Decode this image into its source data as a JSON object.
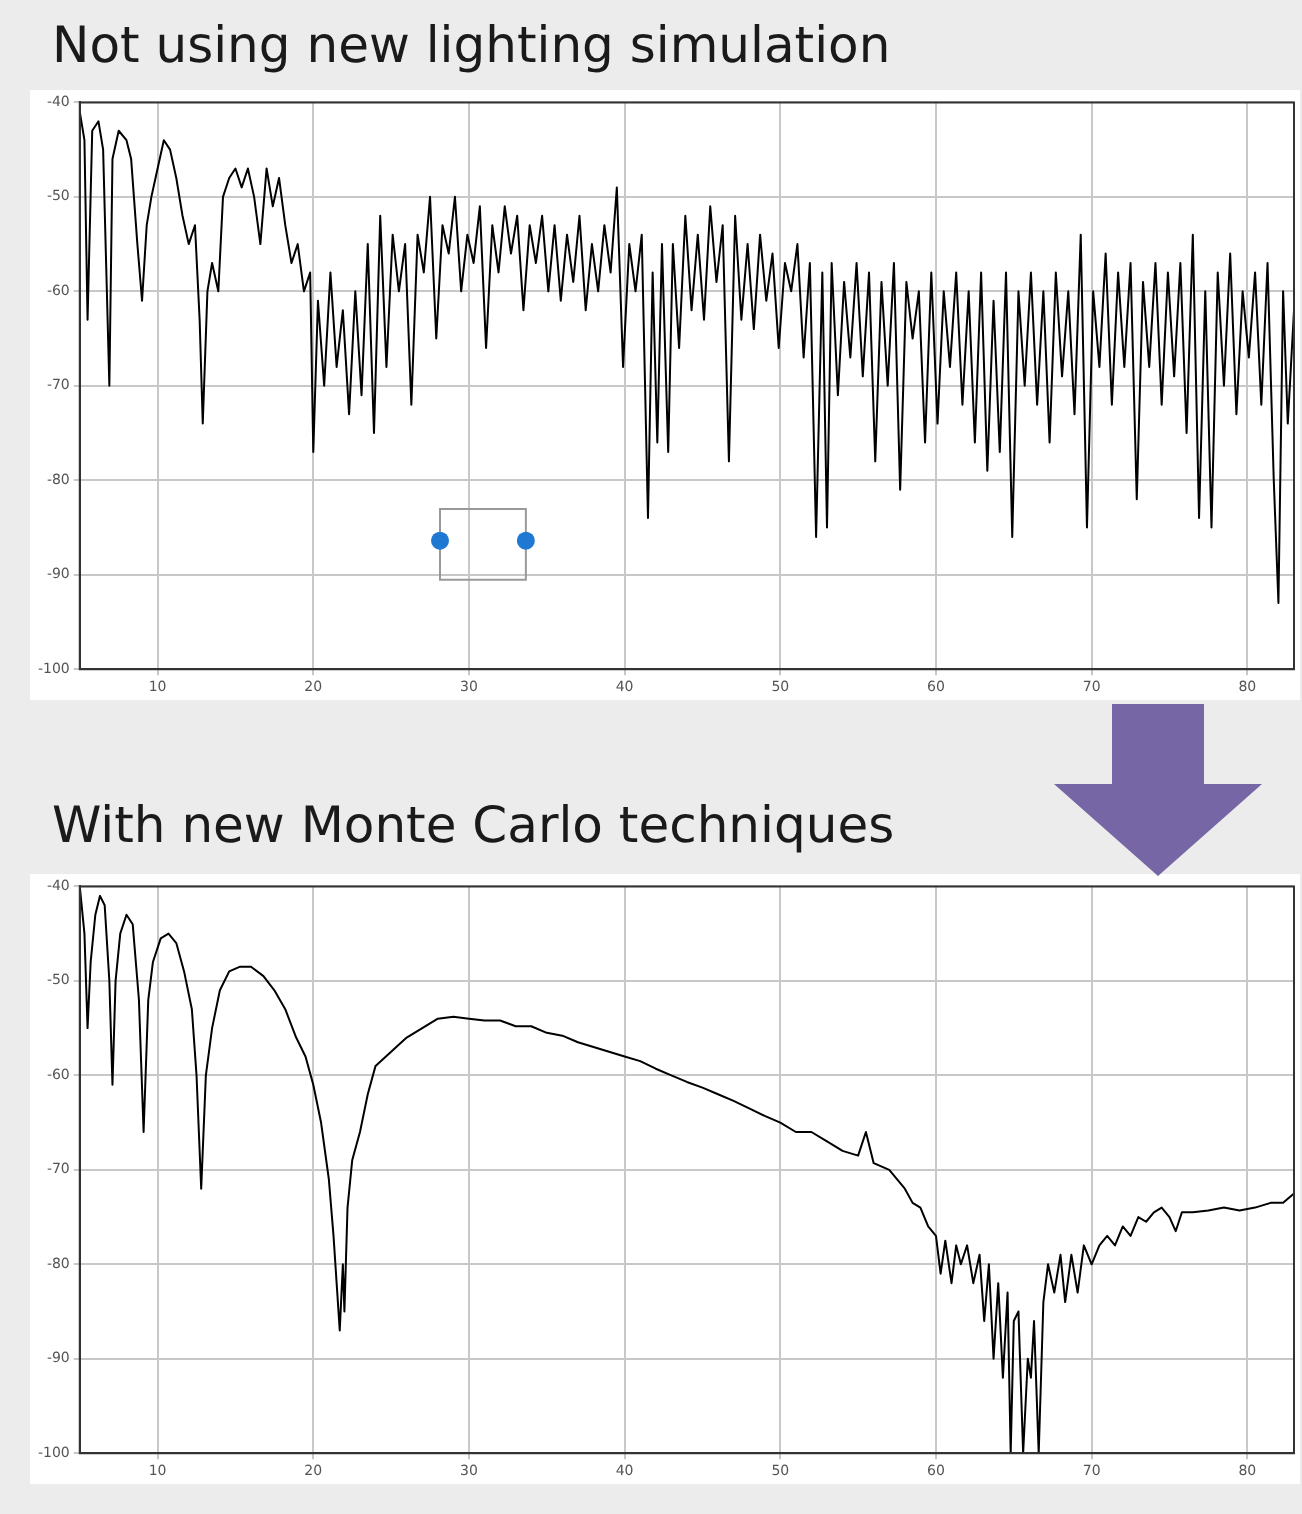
{
  "chart_data": [
    {
      "type": "line",
      "title": "Not using new lighting simulation",
      "xlim": [
        5,
        83
      ],
      "ylim": [
        -100,
        -40
      ],
      "xticks": [
        10,
        20,
        30,
        40,
        50,
        60,
        70,
        80
      ],
      "yticks": [
        -100,
        -90,
        -80,
        -70,
        -60,
        -50,
        -40
      ],
      "grid": true,
      "legend": false,
      "marker": "none",
      "line_style": "solid",
      "series": [
        {
          "color": "#000000",
          "x": [
            5.0,
            5.3,
            5.5,
            5.8,
            6.2,
            6.5,
            6.9,
            7.1,
            7.5,
            8.0,
            8.3,
            8.7,
            9.0,
            9.3,
            9.6,
            10.0,
            10.4,
            10.8,
            11.2,
            11.6,
            12.0,
            12.4,
            12.7,
            12.9,
            13.2,
            13.5,
            13.9,
            14.2,
            14.6,
            15.0,
            15.4,
            15.8,
            16.2,
            16.6,
            17.0,
            17.4,
            17.8,
            18.2,
            18.6,
            19.0,
            19.4,
            19.8,
            20.0,
            20.3,
            20.7,
            21.1,
            21.5,
            21.9,
            22.3,
            22.7,
            23.1,
            23.5,
            23.9,
            24.3,
            24.7,
            25.1,
            25.5,
            25.9,
            26.3,
            26.7,
            27.1,
            27.5,
            27.9,
            28.3,
            28.7,
            29.1,
            29.5,
            29.9,
            30.3,
            30.7,
            31.1,
            31.5,
            31.9,
            32.3,
            32.7,
            33.1,
            33.5,
            33.9,
            34.3,
            34.7,
            35.1,
            35.5,
            35.9,
            36.3,
            36.7,
            37.1,
            37.5,
            37.9,
            38.3,
            38.7,
            39.1,
            39.5,
            39.9,
            40.3,
            40.7,
            41.1,
            41.5,
            41.8,
            42.1,
            42.4,
            42.8,
            43.1,
            43.5,
            43.9,
            44.3,
            44.7,
            45.1,
            45.5,
            45.9,
            46.3,
            46.7,
            47.1,
            47.5,
            47.9,
            48.3,
            48.7,
            49.1,
            49.5,
            49.9,
            50.3,
            50.7,
            51.1,
            51.5,
            51.9,
            52.3,
            52.7,
            53.0,
            53.3,
            53.7,
            54.1,
            54.5,
            54.9,
            55.3,
            55.7,
            56.1,
            56.5,
            56.9,
            57.3,
            57.7,
            58.1,
            58.5,
            58.9,
            59.3,
            59.7,
            60.1,
            60.5,
            60.9,
            61.3,
            61.7,
            62.1,
            62.5,
            62.9,
            63.3,
            63.7,
            64.1,
            64.5,
            64.9,
            65.3,
            65.7,
            66.1,
            66.5,
            66.9,
            67.3,
            67.7,
            68.1,
            68.5,
            68.9,
            69.3,
            69.7,
            70.1,
            70.5,
            70.9,
            71.3,
            71.7,
            72.1,
            72.5,
            72.9,
            73.3,
            73.7,
            74.1,
            74.5,
            74.9,
            75.3,
            75.7,
            76.1,
            76.5,
            76.9,
            77.3,
            77.7,
            78.1,
            78.5,
            78.9,
            79.3,
            79.7,
            80.1,
            80.5,
            80.9,
            81.3,
            81.7,
            82.0,
            82.3,
            82.6,
            83.0
          ],
          "values": [
            -41,
            -44,
            -63,
            -43,
            -42,
            -45,
            -70,
            -46,
            -43,
            -44,
            -46,
            -55,
            -61,
            -53,
            -50,
            -47,
            -44,
            -45,
            -48,
            -52,
            -55,
            -53,
            -63,
            -74,
            -60,
            -57,
            -60,
            -50,
            -48,
            -47,
            -49,
            -47,
            -50,
            -55,
            -47,
            -51,
            -48,
            -53,
            -57,
            -55,
            -60,
            -58,
            -77,
            -61,
            -70,
            -58,
            -68,
            -62,
            -73,
            -60,
            -71,
            -55,
            -75,
            -52,
            -68,
            -54,
            -60,
            -55,
            -72,
            -54,
            -58,
            -50,
            -65,
            -53,
            -56,
            -50,
            -60,
            -54,
            -57,
            -51,
            -66,
            -53,
            -58,
            -51,
            -56,
            -52,
            -62,
            -53,
            -57,
            -52,
            -60,
            -53,
            -61,
            -54,
            -59,
            -52,
            -62,
            -55,
            -60,
            -53,
            -58,
            -49,
            -68,
            -55,
            -60,
            -54,
            -84,
            -58,
            -76,
            -55,
            -77,
            -55,
            -66,
            -52,
            -62,
            -54,
            -63,
            -51,
            -59,
            -53,
            -78,
            -52,
            -63,
            -55,
            -64,
            -54,
            -61,
            -56,
            -66,
            -57,
            -60,
            -55,
            -67,
            -57,
            -86,
            -58,
            -85,
            -57,
            -71,
            -59,
            -67,
            -57,
            -69,
            -58,
            -78,
            -59,
            -70,
            -57,
            -81,
            -59,
            -65,
            -60,
            -76,
            -58,
            -74,
            -60,
            -68,
            -58,
            -72,
            -60,
            -76,
            -58,
            -79,
            -61,
            -77,
            -58,
            -86,
            -60,
            -70,
            -58,
            -72,
            -60,
            -76,
            -58,
            -69,
            -60,
            -73,
            -54,
            -85,
            -60,
            -68,
            -56,
            -72,
            -58,
            -68,
            -57,
            -82,
            -59,
            -68,
            -57,
            -72,
            -58,
            -69,
            -57,
            -75,
            -54,
            -84,
            -60,
            -85,
            -58,
            -70,
            -56,
            -73,
            -60,
            -67,
            -58,
            -72,
            -57,
            -80,
            -93,
            -60,
            -74,
            -62
          ]
        }
      ]
    },
    {
      "type": "line",
      "title": "With new Monte Carlo techniques",
      "xlim": [
        5,
        83
      ],
      "ylim": [
        -100,
        -40
      ],
      "xticks": [
        10,
        20,
        30,
        40,
        50,
        60,
        70,
        80
      ],
      "yticks": [
        -100,
        -90,
        -80,
        -70,
        -60,
        -50,
        -40
      ],
      "grid": true,
      "legend": false,
      "marker": "none",
      "line_style": "solid",
      "series": [
        {
          "color": "#000000",
          "x": [
            5.0,
            5.3,
            5.5,
            5.7,
            6.0,
            6.3,
            6.6,
            6.9,
            7.1,
            7.3,
            7.6,
            8.0,
            8.4,
            8.8,
            9.1,
            9.4,
            9.7,
            10.2,
            10.7,
            11.2,
            11.7,
            12.2,
            12.5,
            12.8,
            13.1,
            13.5,
            14.0,
            14.6,
            15.3,
            16.0,
            16.8,
            17.5,
            18.2,
            18.9,
            19.5,
            20.0,
            20.5,
            21.0,
            21.3,
            21.5,
            21.7,
            21.9,
            22.0,
            22.2,
            22.5,
            23.0,
            23.5,
            24.0,
            25.0,
            26.0,
            27.0,
            28.0,
            29.0,
            30.0,
            31.0,
            32.0,
            33.0,
            34.0,
            35.0,
            36.0,
            37.0,
            38.0,
            39.0,
            40.0,
            41.0,
            42.0,
            43.0,
            44.0,
            45.0,
            46.0,
            47.0,
            48.0,
            49.0,
            50.0,
            51.0,
            52.0,
            53.0,
            54.0,
            55.0,
            55.5,
            56.0,
            57.0,
            58.0,
            58.5,
            59.0,
            59.5,
            60.0,
            60.3,
            60.6,
            61.0,
            61.3,
            61.6,
            62.0,
            62.4,
            62.8,
            63.1,
            63.4,
            63.7,
            64.0,
            64.3,
            64.6,
            64.8,
            65.0,
            65.3,
            65.6,
            65.9,
            66.1,
            66.3,
            66.6,
            66.9,
            67.2,
            67.6,
            68.0,
            68.3,
            68.7,
            69.1,
            69.5,
            70.0,
            70.5,
            71.0,
            71.5,
            72.0,
            72.5,
            73.0,
            73.5,
            74.0,
            74.5,
            75.0,
            75.4,
            75.8,
            76.5,
            77.5,
            78.5,
            79.5,
            80.5,
            81.5,
            82.3,
            83.0
          ],
          "values": [
            -40,
            -45,
            -55,
            -48,
            -43,
            -41,
            -42,
            -50,
            -61,
            -50,
            -45,
            -43,
            -44,
            -52,
            -66,
            -52,
            -48,
            -45.5,
            -45,
            -46,
            -49,
            -53,
            -60,
            -72,
            -60,
            -55,
            -51,
            -49,
            -48.5,
            -48.5,
            -49.5,
            -51,
            -53,
            -56,
            -58,
            -61,
            -65,
            -71,
            -77,
            -82,
            -87,
            -80,
            -85,
            -74,
            -69,
            -66,
            -62,
            -59,
            -57.5,
            -56,
            -55,
            -54,
            -53.8,
            -54,
            -54.2,
            -54.2,
            -54.8,
            -54.8,
            -55.5,
            -55.8,
            -56.5,
            -57,
            -57.5,
            -58,
            -58.5,
            -59.3,
            -60,
            -60.7,
            -61.3,
            -62,
            -62.7,
            -63.5,
            -64.3,
            -65,
            -66,
            -66,
            -67,
            -68,
            -68.5,
            -66,
            -69.3,
            -70,
            -72,
            -73.5,
            -74,
            -76,
            -77,
            -81,
            -77.5,
            -82,
            -78,
            -80,
            -78,
            -82,
            -79,
            -86,
            -80,
            -90,
            -82,
            -92,
            -83,
            -100,
            -86,
            -85,
            -100,
            -90,
            -92,
            -86,
            -100,
            -84,
            -80,
            -83,
            -79,
            -84,
            -79,
            -83,
            -78,
            -80,
            -78,
            -77,
            -78,
            -76,
            -77,
            -75,
            -75.5,
            -74.5,
            -74,
            -75,
            -76.5,
            -74.5,
            -74.5,
            -74.3,
            -74,
            -74.3,
            -74,
            -73.5,
            -73.5,
            -72.5
          ]
        }
      ]
    }
  ]
}
